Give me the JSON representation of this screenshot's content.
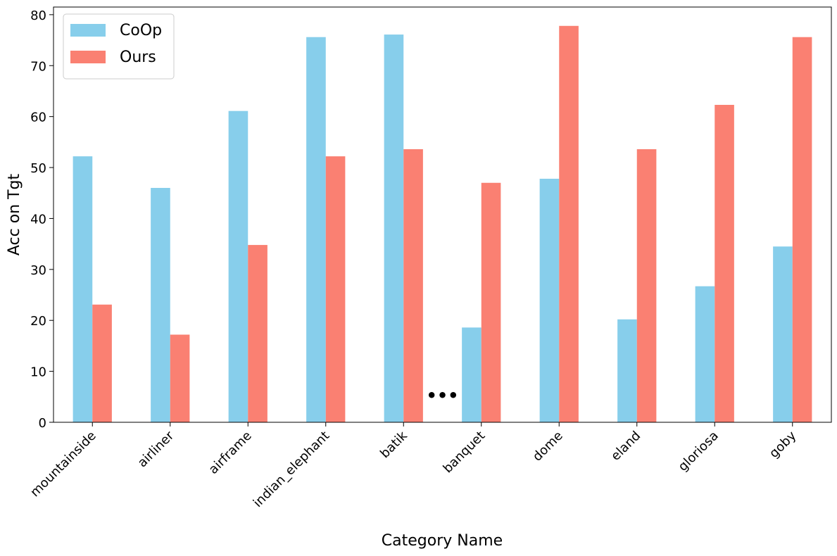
{
  "chart_data": {
    "type": "bar",
    "xlabel": "Category Name",
    "ylabel": "Acc on Tgt",
    "categories": [
      "mountainside",
      "airliner",
      "airframe",
      "indian_elephant",
      "batik",
      "banquet",
      "dome",
      "eland",
      "gloriosa",
      "goby"
    ],
    "series": [
      {
        "name": "CoOp",
        "color": "#87ceeb",
        "values": [
          52.2,
          46,
          61.1,
          75.6,
          76.1,
          18.6,
          47.8,
          20.2,
          26.7,
          34.5
        ]
      },
      {
        "name": "Ours",
        "color": "#fa8072",
        "values": [
          23.1,
          17.2,
          34.8,
          52.2,
          53.6,
          47,
          77.8,
          53.6,
          62.3,
          75.6
        ]
      }
    ],
    "annotation": "•••",
    "ylim": [
      0,
      81.5
    ],
    "yticks": [
      0,
      10,
      20,
      30,
      40,
      50,
      60,
      70,
      80
    ],
    "legend": "upper left"
  }
}
